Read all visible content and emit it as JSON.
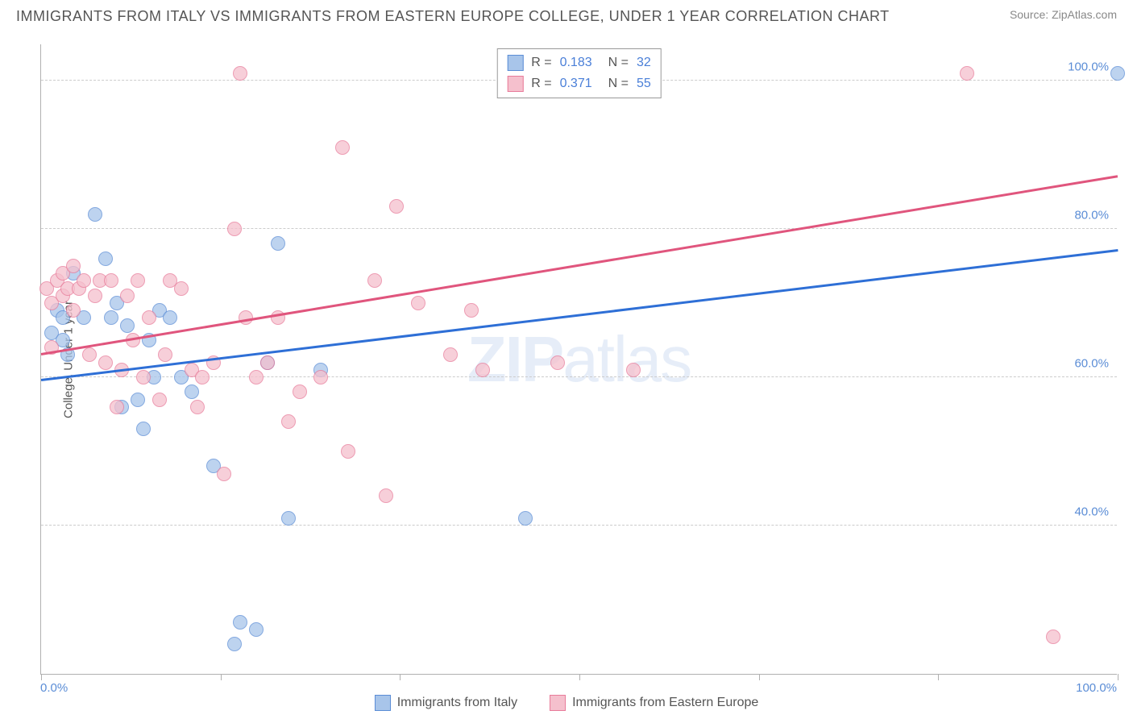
{
  "title": "IMMIGRANTS FROM ITALY VS IMMIGRANTS FROM EASTERN EUROPE COLLEGE, UNDER 1 YEAR CORRELATION CHART",
  "source": "Source: ZipAtlas.com",
  "y_axis_label": "College, Under 1 year",
  "watermark": "ZIPatlas",
  "chart": {
    "type": "scatter",
    "xlim": [
      0,
      100
    ],
    "ylim": [
      20,
      105
    ],
    "y_ticks": [
      40,
      60,
      80,
      100
    ],
    "y_tick_labels": [
      "40.0%",
      "60.0%",
      "80.0%",
      "100.0%"
    ],
    "x_ticks": [
      0,
      16.67,
      33.33,
      50,
      66.67,
      83.33,
      100
    ],
    "x_min_label": "0.0%",
    "x_max_label": "100.0%",
    "grid_color": "#cccccc",
    "background_color": "#ffffff",
    "series": [
      {
        "name": "Immigrants from Italy",
        "fill": "#a8c5ea",
        "stroke": "#5b8dd6",
        "line_color": "#2e6fd6",
        "R": "0.183",
        "N": "32",
        "trend": {
          "x1": 0,
          "y1": 59.5,
          "x2": 100,
          "y2": 77
        },
        "points": [
          [
            1,
            66
          ],
          [
            1.5,
            69
          ],
          [
            2,
            68
          ],
          [
            2,
            65
          ],
          [
            2.5,
            63
          ],
          [
            3,
            74
          ],
          [
            4,
            68
          ],
          [
            5,
            82
          ],
          [
            6,
            76
          ],
          [
            6.5,
            68
          ],
          [
            7,
            70
          ],
          [
            7.5,
            56
          ],
          [
            8,
            67
          ],
          [
            9,
            57
          ],
          [
            9.5,
            53
          ],
          [
            10,
            65
          ],
          [
            10.5,
            60
          ],
          [
            11,
            69
          ],
          [
            12,
            68
          ],
          [
            13,
            60
          ],
          [
            14,
            58
          ],
          [
            16,
            48
          ],
          [
            18,
            24
          ],
          [
            18.5,
            27
          ],
          [
            20,
            26
          ],
          [
            21,
            62
          ],
          [
            22,
            78
          ],
          [
            23,
            41
          ],
          [
            26,
            61
          ],
          [
            45,
            41
          ],
          [
            100,
            101
          ]
        ]
      },
      {
        "name": "Immigrants from Eastern Europe",
        "fill": "#f5c0cd",
        "stroke": "#e87b9a",
        "line_color": "#e0557d",
        "R": "0.371",
        "N": "55",
        "trend": {
          "x1": 0,
          "y1": 63,
          "x2": 100,
          "y2": 87
        },
        "points": [
          [
            0.5,
            72
          ],
          [
            1,
            64
          ],
          [
            1,
            70
          ],
          [
            1.5,
            73
          ],
          [
            2,
            74
          ],
          [
            2,
            71
          ],
          [
            2.5,
            72
          ],
          [
            3,
            75
          ],
          [
            3,
            69
          ],
          [
            3.5,
            72
          ],
          [
            4,
            73
          ],
          [
            4.5,
            63
          ],
          [
            5,
            71
          ],
          [
            5.5,
            73
          ],
          [
            6,
            62
          ],
          [
            6.5,
            73
          ],
          [
            7,
            56
          ],
          [
            7.5,
            61
          ],
          [
            8,
            71
          ],
          [
            8.5,
            65
          ],
          [
            9,
            73
          ],
          [
            9.5,
            60
          ],
          [
            10,
            68
          ],
          [
            11,
            57
          ],
          [
            11.5,
            63
          ],
          [
            12,
            73
          ],
          [
            13,
            72
          ],
          [
            14,
            61
          ],
          [
            14.5,
            56
          ],
          [
            15,
            60
          ],
          [
            16,
            62
          ],
          [
            17,
            47
          ],
          [
            18,
            80
          ],
          [
            18.5,
            101
          ],
          [
            19,
            68
          ],
          [
            20,
            60
          ],
          [
            21,
            62
          ],
          [
            22,
            68
          ],
          [
            23,
            54
          ],
          [
            24,
            58
          ],
          [
            26,
            60
          ],
          [
            28,
            91
          ],
          [
            28.5,
            50
          ],
          [
            31,
            73
          ],
          [
            32,
            44
          ],
          [
            33,
            83
          ],
          [
            35,
            70
          ],
          [
            38,
            63
          ],
          [
            40,
            69
          ],
          [
            41,
            61
          ],
          [
            48,
            62
          ],
          [
            55,
            61
          ],
          [
            86,
            101
          ],
          [
            94,
            25
          ]
        ]
      }
    ]
  },
  "bottom_legend": [
    {
      "label": "Immigrants from Italy",
      "fill": "#a8c5ea",
      "stroke": "#5b8dd6"
    },
    {
      "label": "Immigrants from Eastern Europe",
      "fill": "#f5c0cd",
      "stroke": "#e87b9a"
    }
  ]
}
